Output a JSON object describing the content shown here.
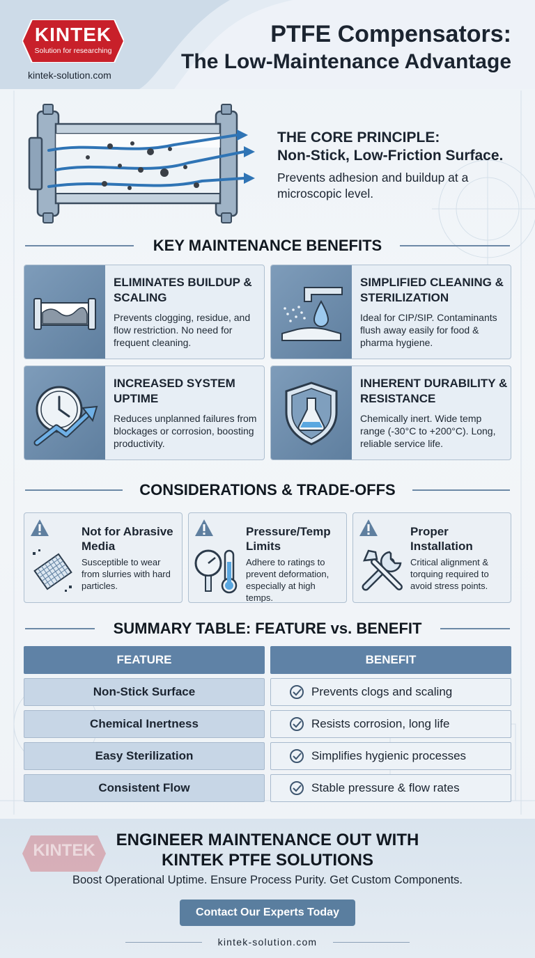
{
  "brand": {
    "logo": "KINTEK",
    "tagline": "Solution for researching",
    "website": "kintek-solution.com"
  },
  "header": {
    "title_line1": "PTFE Compensators:",
    "title_line2": "The Low-Maintenance Advantage"
  },
  "core": {
    "heading_line1": "THE CORE PRINCIPLE:",
    "heading_line2": "Non-Stick, Low-Friction Surface.",
    "text": "Prevents adhesion and buildup at a microscopic level."
  },
  "benefits": {
    "title": "KEY MAINTENANCE BENEFITS",
    "items": [
      {
        "title": "ELIMINATES BUILDUP & SCALING",
        "text": "Prevents clogging, residue, and flow restriction. No need for frequent cleaning.",
        "icon": "pipe-icon"
      },
      {
        "title": "SIMPLIFIED CLEANING & STERILIZATION",
        "text": "Ideal for CIP/SIP. Contaminants flush away easily for food & pharma hygiene.",
        "icon": "spray-icon"
      },
      {
        "title": "INCREASED SYSTEM UPTIME",
        "text": "Reduces unplanned failures from blockages or corrosion, boosting productivity.",
        "icon": "clock-icon"
      },
      {
        "title": "INHERENT DURABILITY & RESISTANCE",
        "text": "Chemically inert. Wide temp range (-30°C to +200°C). Long, reliable service life.",
        "icon": "shield-icon"
      }
    ]
  },
  "considerations": {
    "title": "CONSIDERATIONS & TRADE-OFFS",
    "items": [
      {
        "title": "Not for Abrasive Media",
        "text": "Susceptible to wear from slurries with hard particles.",
        "icon": "abrasive-icon"
      },
      {
        "title": "Pressure/Temp Limits",
        "text": "Adhere to ratings to prevent deformation, especially at high temps.",
        "icon": "gauge-icon"
      },
      {
        "title": "Proper Installation",
        "text": "Critical alignment & torquing required to avoid stress points.",
        "icon": "tools-icon"
      }
    ]
  },
  "table": {
    "title": "SUMMARY TABLE: FEATURE vs. BENEFIT",
    "headers": [
      "FEATURE",
      "BENEFIT"
    ],
    "rows": [
      {
        "feature": "Non-Stick Surface",
        "benefit": "Prevents clogs and scaling"
      },
      {
        "feature": "Chemical Inertness",
        "benefit": "Resists corrosion, long life"
      },
      {
        "feature": "Easy Sterilization",
        "benefit": "Simplifies hygienic processes"
      },
      {
        "feature": "Consistent Flow",
        "benefit": "Stable pressure & flow rates"
      }
    ]
  },
  "cta": {
    "watermark": "KINTEK",
    "heading_line1": "ENGINEER MAINTENANCE OUT WITH",
    "heading_line2": "KINTEK PTFE SOLUTIONS",
    "subtext": "Boost Operational Uptime. Ensure Process Purity. Get Custom Components.",
    "button": "Contact Our Experts Today",
    "url": "kintek-solution.com"
  },
  "colors": {
    "brand_red": "#c8202a",
    "steel_blue": "#5f82a6",
    "dark_text": "#1b2430"
  }
}
